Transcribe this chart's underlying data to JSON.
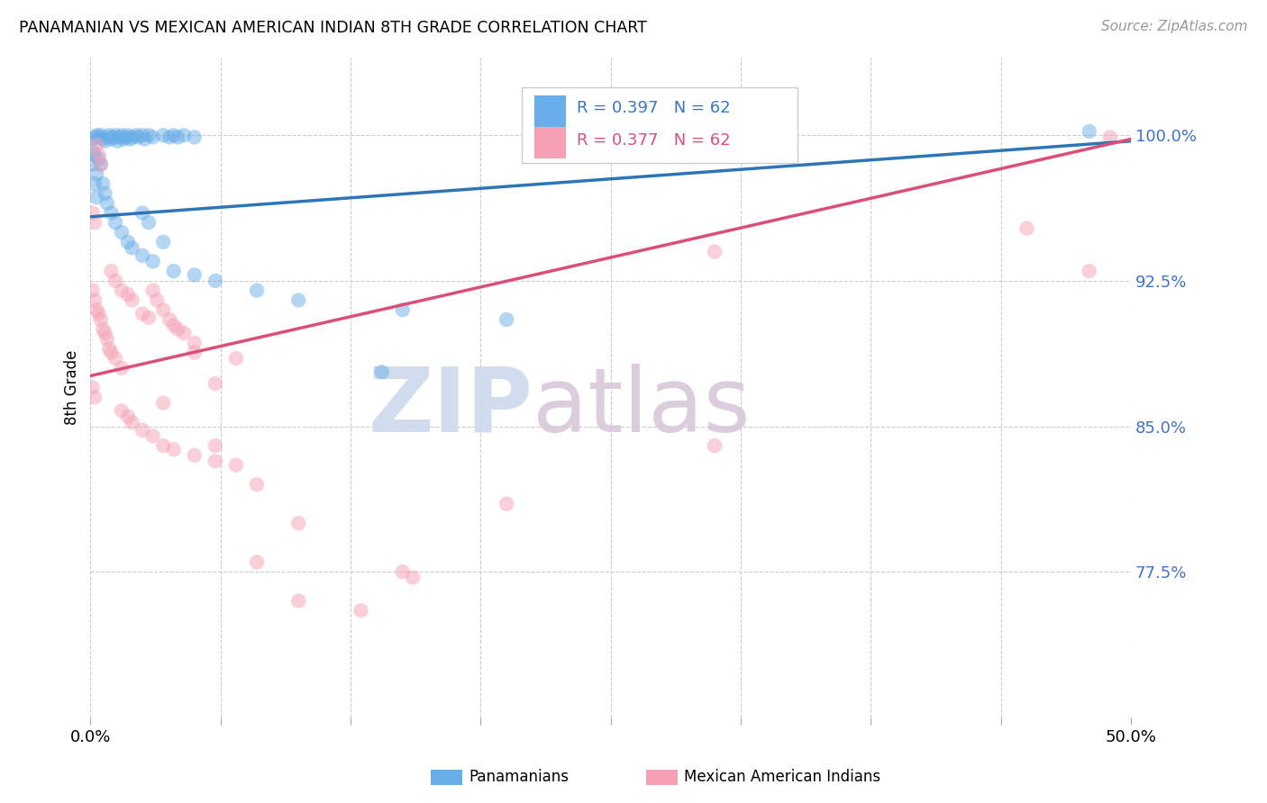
{
  "title": "PANAMANIAN VS MEXICAN AMERICAN INDIAN 8TH GRADE CORRELATION CHART",
  "source": "Source: ZipAtlas.com",
  "ylabel": "8th Grade",
  "ytick_labels": [
    "100.0%",
    "92.5%",
    "85.0%",
    "77.5%"
  ],
  "ytick_values": [
    1.0,
    0.925,
    0.85,
    0.775
  ],
  "x_min": 0.0,
  "x_max": 0.5,
  "y_min": 0.7,
  "y_max": 1.04,
  "blue_R": 0.397,
  "blue_N": 62,
  "pink_R": 0.377,
  "pink_N": 62,
  "legend_label_blue": "Panamanians",
  "legend_label_pink": "Mexican American Indians",
  "blue_color": "#6aaee8",
  "pink_color": "#f4a0b5",
  "blue_line_color": "#2e75b6",
  "pink_line_color": "#d94f7a",
  "watermark_zip": "ZIP",
  "watermark_atlas": "atlas",
  "blue_dots": [
    [
      0.001,
      0.998
    ],
    [
      0.002,
      0.999
    ],
    [
      0.003,
      1.0
    ],
    [
      0.004,
      0.999
    ],
    [
      0.005,
      1.0
    ],
    [
      0.006,
      0.998
    ],
    [
      0.007,
      0.997
    ],
    [
      0.008,
      0.999
    ],
    [
      0.009,
      1.0
    ],
    [
      0.01,
      0.998
    ],
    [
      0.011,
      0.999
    ],
    [
      0.012,
      1.0
    ],
    [
      0.013,
      0.997
    ],
    [
      0.014,
      0.999
    ],
    [
      0.015,
      1.0
    ],
    [
      0.016,
      0.998
    ],
    [
      0.017,
      0.999
    ],
    [
      0.018,
      1.0
    ],
    [
      0.019,
      0.998
    ],
    [
      0.02,
      0.999
    ],
    [
      0.022,
      1.0
    ],
    [
      0.023,
      0.999
    ],
    [
      0.025,
      1.0
    ],
    [
      0.026,
      0.998
    ],
    [
      0.028,
      1.0
    ],
    [
      0.03,
      0.999
    ],
    [
      0.035,
      1.0
    ],
    [
      0.038,
      0.999
    ],
    [
      0.04,
      1.0
    ],
    [
      0.042,
      0.999
    ],
    [
      0.045,
      1.0
    ],
    [
      0.05,
      0.999
    ],
    [
      0.002,
      0.99
    ],
    [
      0.004,
      0.988
    ],
    [
      0.005,
      0.985
    ],
    [
      0.006,
      0.975
    ],
    [
      0.007,
      0.97
    ],
    [
      0.008,
      0.965
    ],
    [
      0.01,
      0.96
    ],
    [
      0.012,
      0.955
    ],
    [
      0.015,
      0.95
    ],
    [
      0.018,
      0.945
    ],
    [
      0.02,
      0.942
    ],
    [
      0.025,
      0.938
    ],
    [
      0.03,
      0.935
    ],
    [
      0.04,
      0.93
    ],
    [
      0.05,
      0.928
    ],
    [
      0.06,
      0.925
    ],
    [
      0.08,
      0.92
    ],
    [
      0.1,
      0.915
    ],
    [
      0.002,
      0.975
    ],
    [
      0.003,
      0.968
    ],
    [
      0.15,
      0.91
    ],
    [
      0.2,
      0.905
    ],
    [
      0.14,
      0.878
    ],
    [
      0.035,
      0.945
    ],
    [
      0.028,
      0.955
    ],
    [
      0.025,
      0.96
    ],
    [
      0.003,
      0.98
    ],
    [
      0.001,
      0.985
    ],
    [
      0.48,
      1.002
    ],
    [
      0.001,
      0.992
    ]
  ],
  "pink_dots": [
    [
      0.001,
      0.96
    ],
    [
      0.002,
      0.955
    ],
    [
      0.003,
      0.995
    ],
    [
      0.004,
      0.99
    ],
    [
      0.005,
      0.985
    ],
    [
      0.001,
      0.92
    ],
    [
      0.002,
      0.915
    ],
    [
      0.003,
      0.91
    ],
    [
      0.004,
      0.908
    ],
    [
      0.005,
      0.905
    ],
    [
      0.006,
      0.9
    ],
    [
      0.007,
      0.898
    ],
    [
      0.008,
      0.895
    ],
    [
      0.009,
      0.89
    ],
    [
      0.01,
      0.93
    ],
    [
      0.012,
      0.925
    ],
    [
      0.015,
      0.92
    ],
    [
      0.018,
      0.918
    ],
    [
      0.02,
      0.915
    ],
    [
      0.025,
      0.908
    ],
    [
      0.028,
      0.906
    ],
    [
      0.03,
      0.92
    ],
    [
      0.032,
      0.915
    ],
    [
      0.035,
      0.91
    ],
    [
      0.038,
      0.905
    ],
    [
      0.04,
      0.902
    ],
    [
      0.042,
      0.9
    ],
    [
      0.045,
      0.898
    ],
    [
      0.05,
      0.893
    ],
    [
      0.01,
      0.888
    ],
    [
      0.012,
      0.885
    ],
    [
      0.015,
      0.88
    ],
    [
      0.018,
      0.855
    ],
    [
      0.02,
      0.852
    ],
    [
      0.025,
      0.848
    ],
    [
      0.03,
      0.845
    ],
    [
      0.035,
      0.84
    ],
    [
      0.04,
      0.838
    ],
    [
      0.05,
      0.835
    ],
    [
      0.06,
      0.832
    ],
    [
      0.07,
      0.83
    ],
    [
      0.08,
      0.82
    ],
    [
      0.001,
      0.87
    ],
    [
      0.002,
      0.865
    ],
    [
      0.05,
      0.888
    ],
    [
      0.08,
      0.78
    ],
    [
      0.1,
      0.76
    ],
    [
      0.06,
      0.84
    ],
    [
      0.13,
      0.755
    ],
    [
      0.15,
      0.775
    ],
    [
      0.155,
      0.772
    ],
    [
      0.3,
      0.94
    ],
    [
      0.45,
      0.952
    ],
    [
      0.49,
      0.999
    ],
    [
      0.3,
      0.84
    ],
    [
      0.2,
      0.81
    ],
    [
      0.1,
      0.8
    ],
    [
      0.07,
      0.885
    ],
    [
      0.06,
      0.872
    ],
    [
      0.035,
      0.862
    ],
    [
      0.015,
      0.858
    ],
    [
      0.48,
      0.93
    ]
  ],
  "blue_line_x": [
    0.0,
    0.5
  ],
  "blue_line_y": [
    0.958,
    0.997
  ],
  "pink_line_x": [
    0.0,
    0.5
  ],
  "pink_line_y": [
    0.876,
    0.998
  ]
}
